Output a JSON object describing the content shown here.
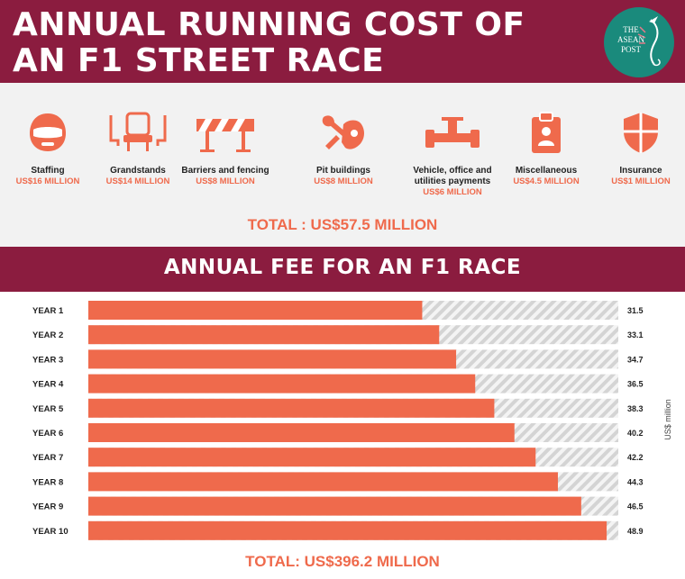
{
  "header": {
    "title_line1": "ANNUAL RUNNING COST OF",
    "title_line2": "AN F1 STREET RACE",
    "logo_text": "THE\nASEAN\nPOST",
    "background_color": "#8b1c3f",
    "logo_color": "#1a8a7c"
  },
  "running_costs": {
    "items": [
      {
        "label": "Staffing",
        "value": "US$16 MILLION",
        "icon": "helmet-icon"
      },
      {
        "label": "Grandstands",
        "value": "US$14 MILLION",
        "icon": "grandstand-seat-icon"
      },
      {
        "label": "Barriers and fencing",
        "value": "US$8 MILLION",
        "icon": "barrier-icon"
      },
      {
        "label": "Pit buildings",
        "value": "US$8 MILLION",
        "icon": "wrench-tools-icon"
      },
      {
        "label": "Vehicle, office and\nutilities payments",
        "value": "US$6 MILLION",
        "icon": "race-car-icon"
      },
      {
        "label": "Miscellaneous",
        "value": "US$4.5 MILLION",
        "icon": "clipboard-icon"
      },
      {
        "label": "Insurance",
        "value": "US$1 MILLION",
        "icon": "shield-icon"
      }
    ],
    "total": "TOTAL : US$57.5 MILLION",
    "accent_color": "#ef6a4c"
  },
  "fee_section": {
    "title": "ANNUAL FEE FOR AN F1 RACE",
    "total": "TOTAL: US$396.2 MILLION"
  },
  "chart_data": {
    "type": "bar",
    "orientation": "horizontal",
    "title": "ANNUAL FEE FOR AN F1 RACE",
    "categories": [
      "YEAR 1",
      "YEAR 2",
      "YEAR 3",
      "YEAR 4",
      "YEAR 5",
      "YEAR 6",
      "YEAR 7",
      "YEAR 8",
      "YEAR 9",
      "YEAR 10"
    ],
    "values": [
      31.5,
      33.1,
      34.7,
      36.5,
      38.3,
      40.2,
      42.2,
      44.3,
      46.5,
      48.9
    ],
    "value_labels": [
      "31.5",
      "33.1",
      "34.7",
      "36.5",
      "38.3",
      "40.2",
      "42.2",
      "44.3",
      "46.5",
      "48.9"
    ],
    "unit_label": "US$ million",
    "xlim": [
      0,
      50
    ],
    "bar_color": "#ef6a4c",
    "track_color": "#dcdcdc"
  }
}
